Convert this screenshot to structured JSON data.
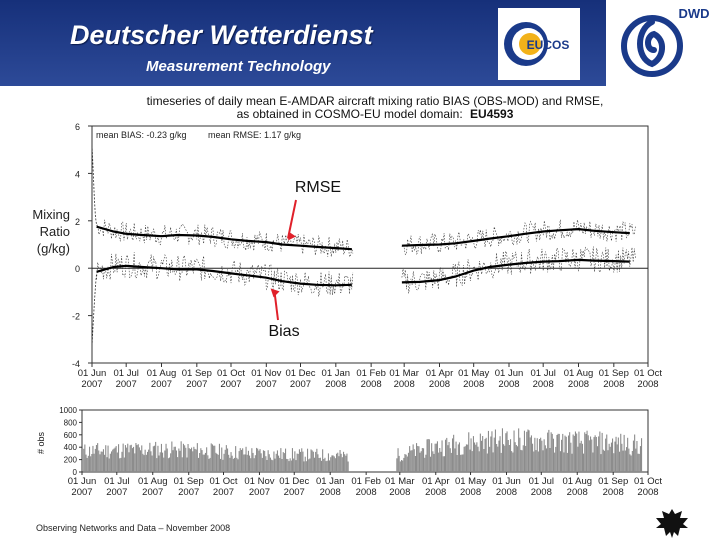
{
  "header": {
    "title": "Deutscher Wetterdienst",
    "subtitle": "Measurement Technology",
    "logo_eucos": "EUCOS",
    "logo_dwd": "DWD"
  },
  "colors": {
    "header_bg": "#1f3a8a",
    "arrow": "#e0202a",
    "series": "#000000",
    "bars": "#8c8c8c"
  },
  "side_label": [
    "Mixing",
    "Ratio",
    "(g/kg)"
  ],
  "footer": "Observing Networks and Data – November 2008",
  "chart_data": [
    {
      "type": "line",
      "title_line1": "timeseries of daily mean E-AMDAR aircraft mixing ratio BIAS (OBS-MOD) and RMSE,",
      "title_line2_prefix": "as obtained in COSMO-EU model domain:",
      "title_line2_domain": "EU4593",
      "stats_bias": "mean BIAS:  -0.23 g/kg",
      "stats_rmse": "mean RMSE:   1.17 g/kg",
      "ylim": [
        -4,
        6
      ],
      "yticks": [
        "6",
        "4",
        "2",
        "0",
        "-2",
        "-4"
      ],
      "x_months": [
        [
          "01 Jun",
          "2007"
        ],
        [
          "01 Jul",
          "2007"
        ],
        [
          "01 Aug",
          "2007"
        ],
        [
          "01 Sep",
          "2007"
        ],
        [
          "01 Oct",
          "2007"
        ],
        [
          "01 Nov",
          "2007"
        ],
        [
          "01 Dec",
          "2007"
        ],
        [
          "01 Jan",
          "2008"
        ],
        [
          "01 Feb",
          "2008"
        ],
        [
          "01 Mar",
          "2008"
        ],
        [
          "01 Apr",
          "2008"
        ],
        [
          "01 May",
          "2008"
        ],
        [
          "01 Jun",
          "2008"
        ],
        [
          "01 Jul",
          "2008"
        ],
        [
          "01 Aug",
          "2008"
        ],
        [
          "01 Sep",
          "2008"
        ],
        [
          "01 Oct",
          "2008"
        ]
      ],
      "gap": [
        "2008-01-16",
        "2008-02-27"
      ],
      "annotations": [
        {
          "label": "RMSE",
          "target_date": "2007-11-20",
          "target_value": 1.0
        },
        {
          "label": "Bias",
          "target_date": "2007-11-10",
          "target_value": -0.6
        }
      ],
      "series": [
        {
          "kind": "rmse-smoothed",
          "x": [
            "2007-06-05",
            "2007-06-20",
            "2007-07-01",
            "2007-07-15",
            "2007-08-01",
            "2007-08-15",
            "2007-09-01",
            "2007-09-15",
            "2007-10-01",
            "2007-10-15",
            "2007-11-01",
            "2007-11-15",
            "2007-12-01",
            "2007-12-15",
            "2008-01-01",
            "2008-01-15",
            "2008-02-28",
            "2008-03-15",
            "2008-04-01",
            "2008-04-15",
            "2008-05-01",
            "2008-05-15",
            "2008-06-01",
            "2008-06-15",
            "2008-07-01",
            "2008-07-15",
            "2008-08-01",
            "2008-08-15",
            "2008-09-01",
            "2008-09-15"
          ],
          "y": [
            1.75,
            1.55,
            1.45,
            1.4,
            1.35,
            1.4,
            1.38,
            1.32,
            1.22,
            1.15,
            1.1,
            1.0,
            0.95,
            0.9,
            0.85,
            0.8,
            0.95,
            0.98,
            1.0,
            1.05,
            1.15,
            1.25,
            1.35,
            1.45,
            1.55,
            1.6,
            1.65,
            1.58,
            1.52,
            1.48
          ]
        },
        {
          "kind": "bias-smoothed",
          "x": [
            "2007-06-05",
            "2007-06-20",
            "2007-07-01",
            "2007-07-15",
            "2007-08-01",
            "2007-08-15",
            "2007-09-01",
            "2007-09-15",
            "2007-10-01",
            "2007-10-15",
            "2007-11-01",
            "2007-11-15",
            "2007-12-01",
            "2007-12-15",
            "2008-01-01",
            "2008-01-15",
            "2008-02-28",
            "2008-03-15",
            "2008-04-01",
            "2008-04-15",
            "2008-05-01",
            "2008-05-15",
            "2008-06-01",
            "2008-06-15",
            "2008-07-01",
            "2008-07-15",
            "2008-08-01",
            "2008-08-15",
            "2008-09-01",
            "2008-09-15"
          ],
          "y": [
            -0.15,
            0.05,
            0.1,
            0.05,
            0.0,
            -0.05,
            -0.05,
            -0.12,
            -0.22,
            -0.3,
            -0.4,
            -0.55,
            -0.65,
            -0.7,
            -0.72,
            -0.7,
            -0.6,
            -0.58,
            -0.5,
            -0.35,
            -0.1,
            0.05,
            0.15,
            0.22,
            0.28,
            0.3,
            0.35,
            0.32,
            0.3,
            0.28
          ]
        }
      ],
      "early_spike": {
        "x": [
          "2007-06-01",
          "2007-06-02",
          "2007-06-03",
          "2007-06-04",
          "2007-06-05"
        ],
        "rmse": [
          5.2,
          4.2,
          3.0,
          2.2,
          1.8
        ],
        "bias": [
          -3.3,
          -2.4,
          -1.5,
          -0.8,
          -0.2
        ]
      }
    },
    {
      "type": "bar",
      "ylabel": "# obs",
      "ylim": [
        0,
        1000
      ],
      "yticks": [
        "1000",
        "800",
        "600",
        "400",
        "200",
        "0"
      ],
      "x_months": [
        [
          "01 Jun",
          "2007"
        ],
        [
          "01 Jul",
          "2007"
        ],
        [
          "01 Aug",
          "2007"
        ],
        [
          "01 Sep",
          "2007"
        ],
        [
          "01 Oct",
          "2007"
        ],
        [
          "01 Nov",
          "2007"
        ],
        [
          "01 Dec",
          "2007"
        ],
        [
          "01 Jan",
          "2008"
        ],
        [
          "01 Feb",
          "2008"
        ],
        [
          "01 Mar",
          "2008"
        ],
        [
          "01 Apr",
          "2008"
        ],
        [
          "01 May",
          "2008"
        ],
        [
          "01 Jun",
          "2008"
        ],
        [
          "01 Jul",
          "2008"
        ],
        [
          "01 Aug",
          "2008"
        ],
        [
          "01 Sep",
          "2008"
        ],
        [
          "01 Oct",
          "2008"
        ]
      ],
      "gap": [
        "2008-01-16",
        "2008-02-27"
      ],
      "level": {
        "x": [
          "2007-06-01",
          "2007-07-01",
          "2007-08-01",
          "2007-09-01",
          "2007-10-01",
          "2007-11-01",
          "2007-12-01",
          "2008-01-01",
          "2008-01-15",
          "2008-02-28",
          "2008-04-01",
          "2008-05-01",
          "2008-06-01",
          "2008-07-01",
          "2008-08-01",
          "2008-09-01",
          "2008-09-20"
        ],
        "y": [
          360,
          380,
          390,
          380,
          350,
          320,
          300,
          290,
          280,
          300,
          440,
          520,
          560,
          540,
          520,
          500,
          470
        ]
      }
    }
  ]
}
